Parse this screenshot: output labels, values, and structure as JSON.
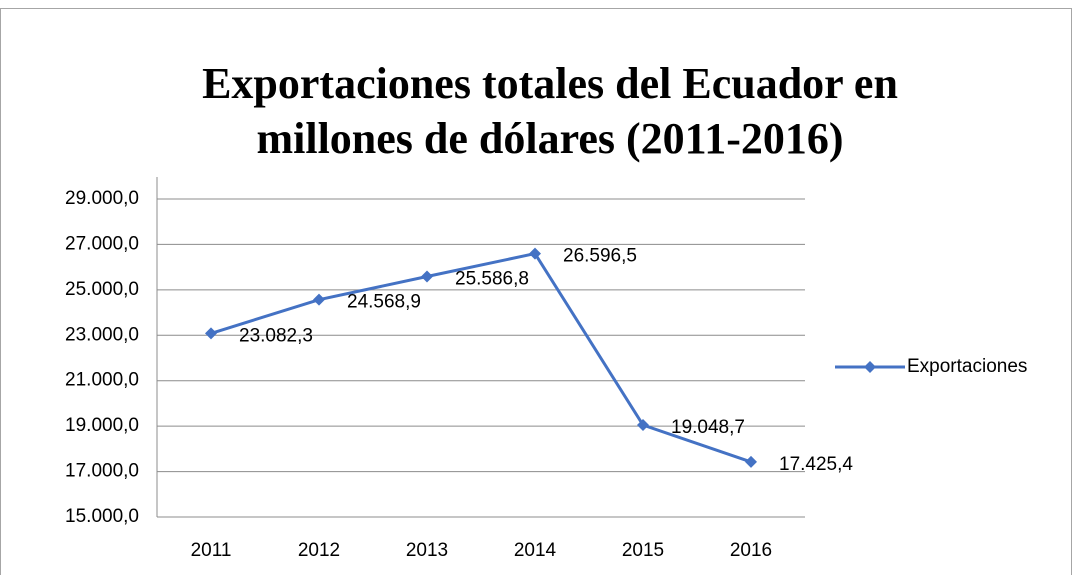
{
  "chart_data": {
    "type": "line",
    "title": "Exportaciones totales del Ecuador en millones de dólares (2011-2016)",
    "categories": [
      "2011",
      "2012",
      "2013",
      "2014",
      "2015",
      "2016"
    ],
    "series": [
      {
        "name": "Exportaciones",
        "color": "#4472c4",
        "values": [
          23082.3,
          24568.9,
          25586.8,
          26596.5,
          19048.7,
          17425.4
        ],
        "value_labels": [
          "23.082,3",
          "24.568,9",
          "25.586,8",
          "26.596,5",
          "19.048,7",
          "17.425,4"
        ]
      }
    ],
    "ylim": [
      15000,
      29000
    ],
    "yticks": [
      {
        "value": 15000,
        "label": "15.000,0"
      },
      {
        "value": 17000,
        "label": "17.000,0"
      },
      {
        "value": 19000,
        "label": "19.000,0"
      },
      {
        "value": 21000,
        "label": "21.000,0"
      },
      {
        "value": 23000,
        "label": "23.000,0"
      },
      {
        "value": 25000,
        "label": "25.000,0"
      },
      {
        "value": 27000,
        "label": "27.000,0"
      },
      {
        "value": 29000,
        "label": "29.000,0"
      }
    ],
    "grid": true,
    "legend": "right"
  }
}
